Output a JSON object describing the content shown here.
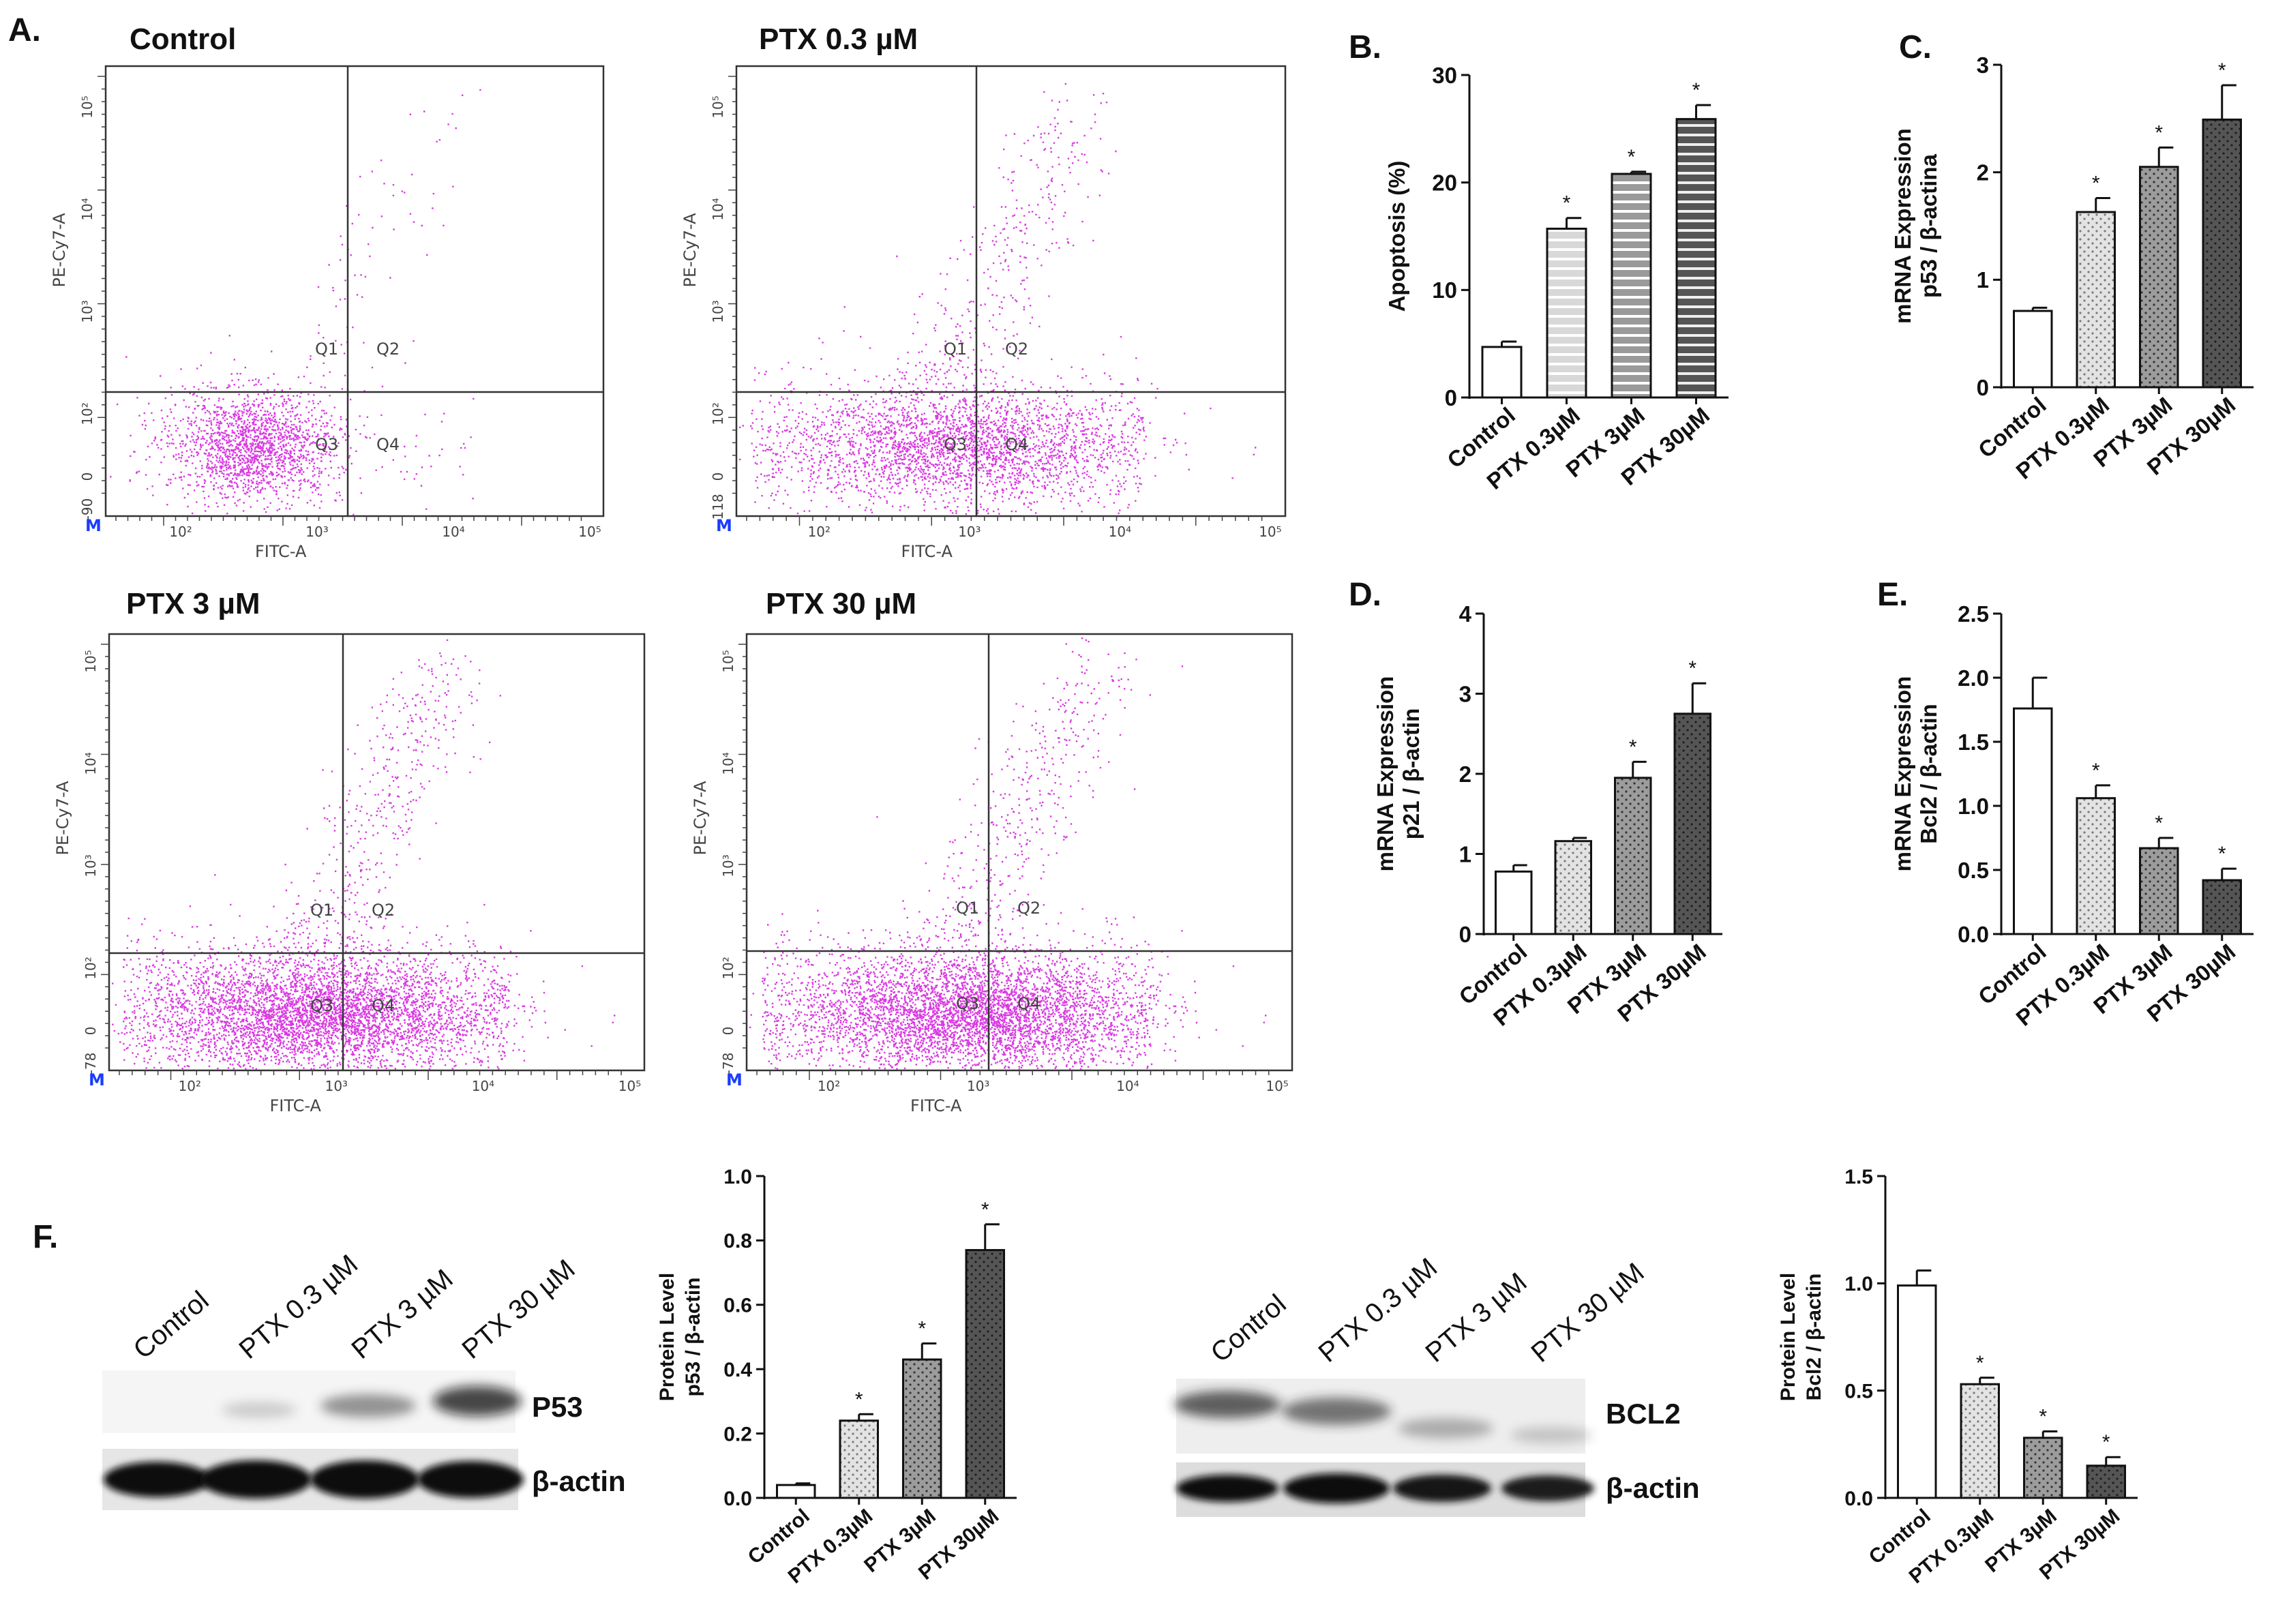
{
  "panel_letters": {
    "A": "A.",
    "B": "B.",
    "C": "C.",
    "D": "D.",
    "E": "E.",
    "F": "F."
  },
  "flow": {
    "x_label": "FITC-A",
    "y_label": "PE-Cy7-A",
    "quadrants": [
      "Q1",
      "Q2",
      "Q3",
      "Q4"
    ],
    "gate_marker": "M",
    "x_ticks": [
      "10²",
      "10³",
      "10⁴",
      "10⁵"
    ],
    "y_ticks": [
      "0",
      "10²",
      "10³",
      "10⁴",
      "10⁵"
    ],
    "plots": [
      {
        "title": "Control",
        "y_min_label": "-90",
        "density": "low"
      },
      {
        "title": "PTX 0.3 µM",
        "y_min_label": "-118",
        "density": "medium"
      },
      {
        "title": "PTX 3 µM",
        "y_min_label": "-78",
        "density": "high"
      },
      {
        "title": "PTX 30 µM",
        "y_min_label": "-78",
        "density": "high"
      }
    ]
  },
  "blots": {
    "p53": {
      "lanes": [
        "Control",
        "PTX 0.3 µM",
        "PTX 3 µM",
        "PTX 30 µM"
      ],
      "bands": [
        "P53",
        "β-actin"
      ]
    },
    "bcl2": {
      "lanes": [
        "Control",
        "PTX 0.3 µM",
        "PTX 3 µM",
        "PTX 30 µM"
      ],
      "bands": [
        "BCL2",
        "β-actin"
      ]
    }
  },
  "chart_data": [
    {
      "id": "B",
      "type": "bar",
      "categories": [
        "Control",
        "PTX 0.3µM",
        "PTX 3µM",
        "PTX 30µM"
      ],
      "values": [
        4.7,
        15.7,
        20.8,
        25.9
      ],
      "errors": [
        0.5,
        1.0,
        0.2,
        1.3
      ],
      "significance": [
        "",
        "*",
        "*",
        "*"
      ],
      "ylabel": [
        "Apoptosis (%)"
      ],
      "ylim": [
        0,
        30
      ],
      "yticks": [
        0,
        10,
        20,
        30
      ],
      "tick_labels": [
        "0",
        "10",
        "20",
        "30"
      ]
    },
    {
      "id": "C",
      "type": "bar",
      "categories": [
        "Control",
        "PTX 0.3µM",
        "PTX 3µM",
        "PTX 30µM"
      ],
      "values": [
        0.71,
        1.63,
        2.05,
        2.49
      ],
      "errors": [
        0.03,
        0.13,
        0.18,
        0.32
      ],
      "significance": [
        "",
        "*",
        "*",
        "*"
      ],
      "ylabel": [
        "mRNA Expression",
        "p53 / β-actina"
      ],
      "ylim": [
        0,
        3
      ],
      "yticks": [
        0,
        1,
        2,
        3
      ],
      "tick_labels": [
        "0",
        "1",
        "2",
        "3"
      ]
    },
    {
      "id": "D",
      "type": "bar",
      "categories": [
        "Control",
        "PTX 0.3µM",
        "PTX 3µM",
        "PTX 30µM"
      ],
      "values": [
        0.78,
        1.16,
        1.95,
        2.75
      ],
      "errors": [
        0.08,
        0.04,
        0.2,
        0.38
      ],
      "significance": [
        "",
        "",
        "*",
        "*"
      ],
      "ylabel": [
        "mRNA Expression",
        "p21 / β-actin"
      ],
      "ylim": [
        0,
        4
      ],
      "yticks": [
        0,
        1,
        2,
        3,
        4
      ],
      "tick_labels": [
        "0",
        "1",
        "2",
        "3",
        "4"
      ]
    },
    {
      "id": "E",
      "type": "bar",
      "categories": [
        "Control",
        "PTX 0.3µM",
        "PTX 3µM",
        "PTX 30µM"
      ],
      "values": [
        1.76,
        1.06,
        0.67,
        0.42
      ],
      "errors": [
        0.24,
        0.1,
        0.08,
        0.09
      ],
      "significance": [
        "",
        "*",
        "*",
        "*"
      ],
      "ylabel": [
        "mRNA Expression",
        "Bcl2 / β-actin"
      ],
      "ylim": [
        0,
        2.5
      ],
      "yticks": [
        0,
        0.5,
        1,
        1.5,
        2,
        2.5
      ],
      "tick_labels": [
        "0.0",
        "0.5",
        "1.0",
        "1.5",
        "2.0",
        "2.5"
      ]
    },
    {
      "id": "F1",
      "type": "bar",
      "categories": [
        "Control",
        "PTX 0.3µM",
        "PTX 3µM",
        "PTX 30µM"
      ],
      "values": [
        0.04,
        0.24,
        0.43,
        0.77
      ],
      "errors": [
        0.005,
        0.02,
        0.05,
        0.08
      ],
      "significance": [
        "",
        "*",
        "*",
        "*"
      ],
      "ylabel": [
        "Protein Level",
        "p53 / β-actin"
      ],
      "ylim": [
        0,
        1
      ],
      "yticks": [
        0,
        0.2,
        0.4,
        0.6,
        0.8,
        1
      ],
      "tick_labels": [
        "0.0",
        "0.2",
        "0.4",
        "0.6",
        "0.8",
        "1.0"
      ]
    },
    {
      "id": "F2",
      "type": "bar",
      "categories": [
        "Control",
        "PTX 0.3µM",
        "PTX 3µM",
        "PTX 30µM"
      ],
      "values": [
        0.99,
        0.53,
        0.28,
        0.15
      ],
      "errors": [
        0.07,
        0.03,
        0.03,
        0.04
      ],
      "significance": [
        "",
        "*",
        "*",
        "*"
      ],
      "ylabel": [
        "Protein Level",
        "Bcl2 / β-actin"
      ],
      "ylim": [
        0,
        1.5
      ],
      "yticks": [
        0,
        0.5,
        1,
        1.5
      ],
      "tick_labels": [
        "0.0",
        "0.5",
        "1.0",
        "1.5"
      ]
    }
  ]
}
